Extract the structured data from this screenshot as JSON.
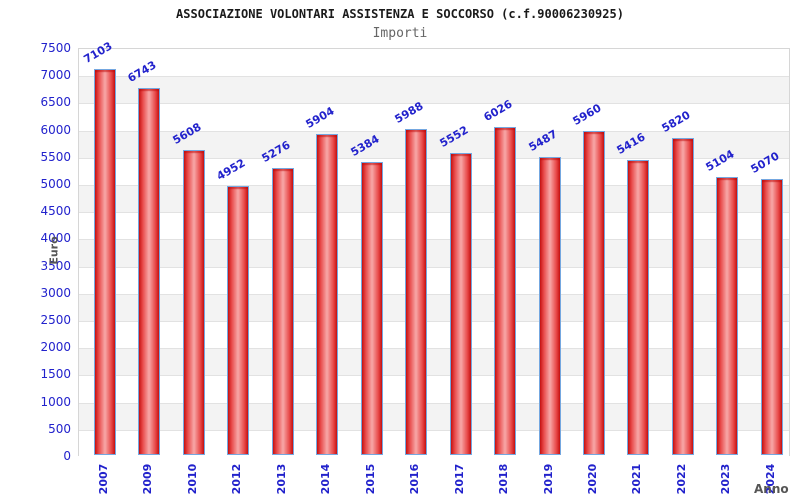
{
  "chart_data": {
    "type": "bar",
    "title": "ASSOCIAZIONE VOLONTARI ASSISTENZA E SOCCORSO (c.f.90006230925)",
    "subtitle": "Importi",
    "xlabel": "Anno",
    "ylabel": "Euro",
    "categories": [
      "2007",
      "2009",
      "2010",
      "2012",
      "2013",
      "2014",
      "2015",
      "2016",
      "2017",
      "2018",
      "2019",
      "2020",
      "2021",
      "2022",
      "2023",
      "2024"
    ],
    "values": [
      7103,
      6743,
      5608,
      4952,
      5276,
      5904,
      5384,
      5988,
      5552,
      6026,
      5487,
      5960,
      5416,
      5820,
      5104,
      5070
    ],
    "ylim": [
      0,
      7500
    ],
    "ytick_step": 500,
    "grid": true,
    "legend_position": "none",
    "colors": {
      "bar_fill_dark": "#c41010",
      "bar_fill_mid": "#e84848",
      "bar_fill_light": "#f7a8a8",
      "bar_border": "#74a7e0",
      "tick_label": "#2222cc",
      "value_label": "#2222cc",
      "axis_title": "#555555",
      "title_color": "#1a1a1a",
      "subtitle_color": "#666666",
      "band": "#f3f3f3",
      "gridline": "#e2e2e2",
      "plot_border": "#d6d6d6",
      "background": "#ffffff"
    }
  }
}
